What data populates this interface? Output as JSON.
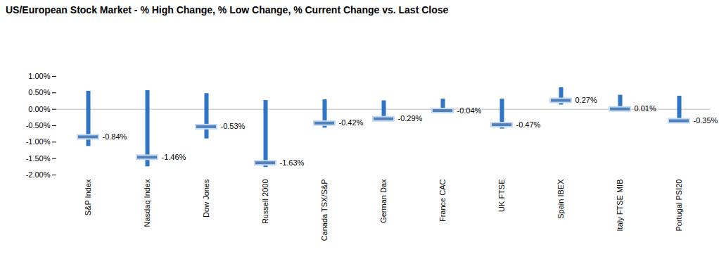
{
  "chart_data": {
    "type": "range",
    "title": "US/European Stock Market - % High Change, % Low Change, % Current Change vs. Last Close",
    "categories": [
      "S&P Index",
      "Nasdaq Index",
      "Dow Jones",
      "Russell 2000",
      "Canada TSX/S&P",
      "German Dax",
      "France CAC",
      "UK FTSE",
      "Spain IBEX",
      "Italy FTSE MIB",
      "Portugal PSI20"
    ],
    "high": [
      0.55,
      0.57,
      0.48,
      0.27,
      0.29,
      0.26,
      0.31,
      0.31,
      0.66,
      0.43,
      0.4
    ],
    "low": [
      -1.13,
      -1.75,
      -0.9,
      -1.77,
      -0.57,
      -0.3,
      -0.08,
      -0.6,
      0.13,
      -0.07,
      -0.38
    ],
    "values": [
      -0.84,
      -1.46,
      -0.53,
      -1.63,
      -0.42,
      -0.29,
      -0.04,
      -0.47,
      0.27,
      0.01,
      -0.35
    ],
    "value_labels": [
      "-0.84%",
      "-1.46%",
      "-0.53%",
      "-1.63%",
      "-0.42%",
      "-0.29%",
      "-0.04%",
      "-0.47%",
      "0.27%",
      "0.01%",
      "-0.35%"
    ],
    "color": "#2e75c6",
    "ylim": [
      -2.0,
      1.0
    ],
    "yticks": [
      {
        "value": -2.0,
        "label": "-2.00%"
      },
      {
        "value": -1.5,
        "label": "-1.50%"
      },
      {
        "value": -1.0,
        "label": "-1.00%"
      },
      {
        "value": -0.5,
        "label": "-0.50%"
      },
      {
        "value": 0,
        "label": "0.00%"
      },
      {
        "value": 0.5,
        "label": "0.50%"
      },
      {
        "value": 1.0,
        "label": "1.00%"
      }
    ],
    "grid": false,
    "data_labels": true
  }
}
